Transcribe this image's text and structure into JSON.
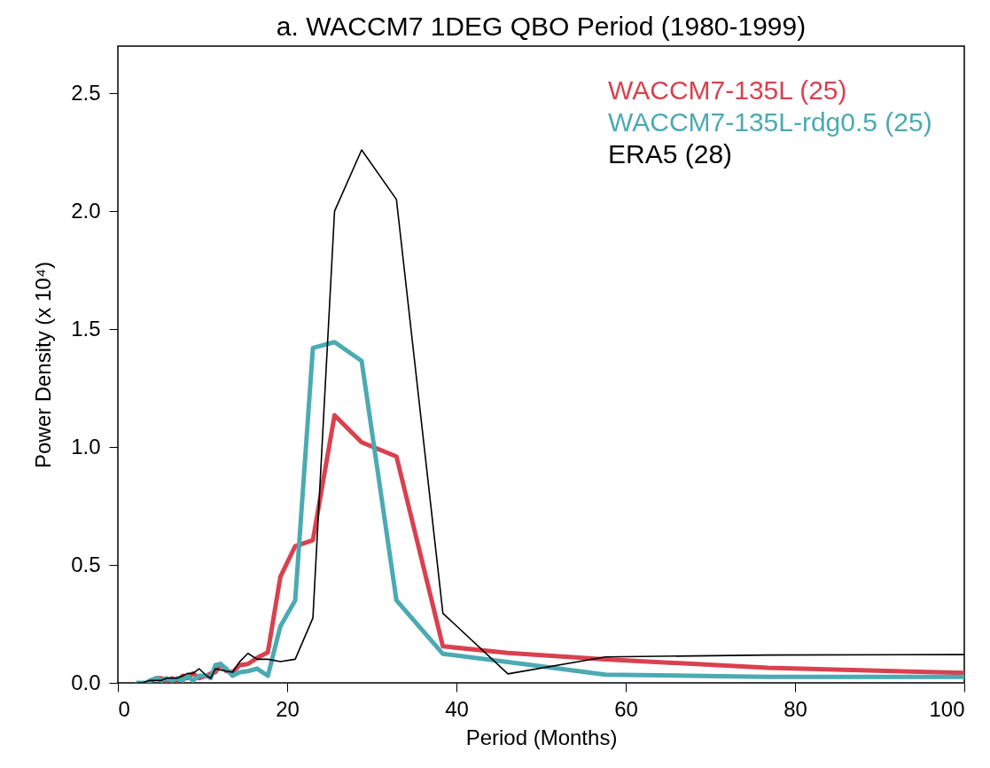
{
  "chart_data": {
    "type": "line",
    "title": "a. WACCM7 1DEG QBO  Period      (1980-1999)",
    "xlabel": "Period (Months)",
    "ylabel": "Power Density (x 10⁴)",
    "x": [
      2.3,
      2.88,
      3.29,
      3.84,
      4.61,
      5.12,
      5.76,
      6.4,
      6.98,
      7.68,
      8.23,
      8.86,
      9.6,
      10.47,
      10.97,
      11.52,
      12.13,
      12.8,
      13.55,
      14.4,
      15.36,
      16.46,
      17.72,
      19.2,
      20.95,
      23.04,
      25.6,
      28.8,
      32.91,
      38.4,
      46.08,
      57.6,
      76.8,
      100
    ],
    "series": [
      {
        "name": "WACCM7-135L (25)",
        "color": "#d9414f",
        "values": [
          null,
          null,
          null,
          0.01,
          0.02,
          0.02,
          0.01,
          0.02,
          0.01,
          0.03,
          0.02,
          0.04,
          0.02,
          0.03,
          0.04,
          0.045,
          0.08,
          0.05,
          0.045,
          0.075,
          0.08,
          0.106,
          0.13,
          0.45,
          0.58,
          0.605,
          1.135,
          1.02,
          0.96,
          0.155,
          0.127,
          0.1,
          0.064,
          0.042
        ]
      },
      {
        "name": "WACCM7-135L-rdg0.5 (25)",
        "color": "#4baab2",
        "values": [
          0,
          0,
          0,
          0.01,
          0.02,
          0.01,
          0.02,
          0.01,
          0.02,
          0.01,
          0.03,
          0.01,
          0.03,
          0.03,
          0.02,
          0.075,
          0.08,
          0.06,
          0.03,
          0.045,
          0.05,
          0.06,
          0.03,
          0.24,
          0.35,
          1.42,
          1.445,
          1.365,
          0.35,
          0.123,
          0.088,
          0.035,
          0.025,
          0.025
        ]
      },
      {
        "name": "ERA5 (28)",
        "color": "#000000",
        "values": [
          0,
          0,
          0.005,
          0.01,
          0.01,
          0.01,
          0.02,
          0.02,
          0.02,
          0.03,
          0.04,
          0.04,
          0.06,
          0.03,
          0.02,
          0.06,
          0.055,
          0.05,
          0.045,
          0.09,
          0.125,
          0.1,
          0.1,
          0.09,
          0.1,
          0.275,
          2.0,
          2.26,
          2.05,
          0.295,
          0.038,
          0.11,
          0.118,
          0.12
        ]
      }
    ],
    "xlim": [
      0,
      100
    ],
    "xticks": [
      0,
      20,
      40,
      60,
      80,
      100
    ],
    "ylim": [
      0,
      2.7
    ],
    "yticks": [
      {
        "value": 0,
        "label": "0.0"
      },
      {
        "value": 0.5,
        "label": "0.5"
      },
      {
        "value": 1,
        "label": "1.0"
      },
      {
        "value": 1.5,
        "label": "1.5"
      },
      {
        "value": 2,
        "label": "2.0"
      },
      {
        "value": 2.5,
        "label": "2.5"
      }
    ],
    "grid": false,
    "legend": "top right",
    "marker": "none",
    "line_style": "solid"
  }
}
